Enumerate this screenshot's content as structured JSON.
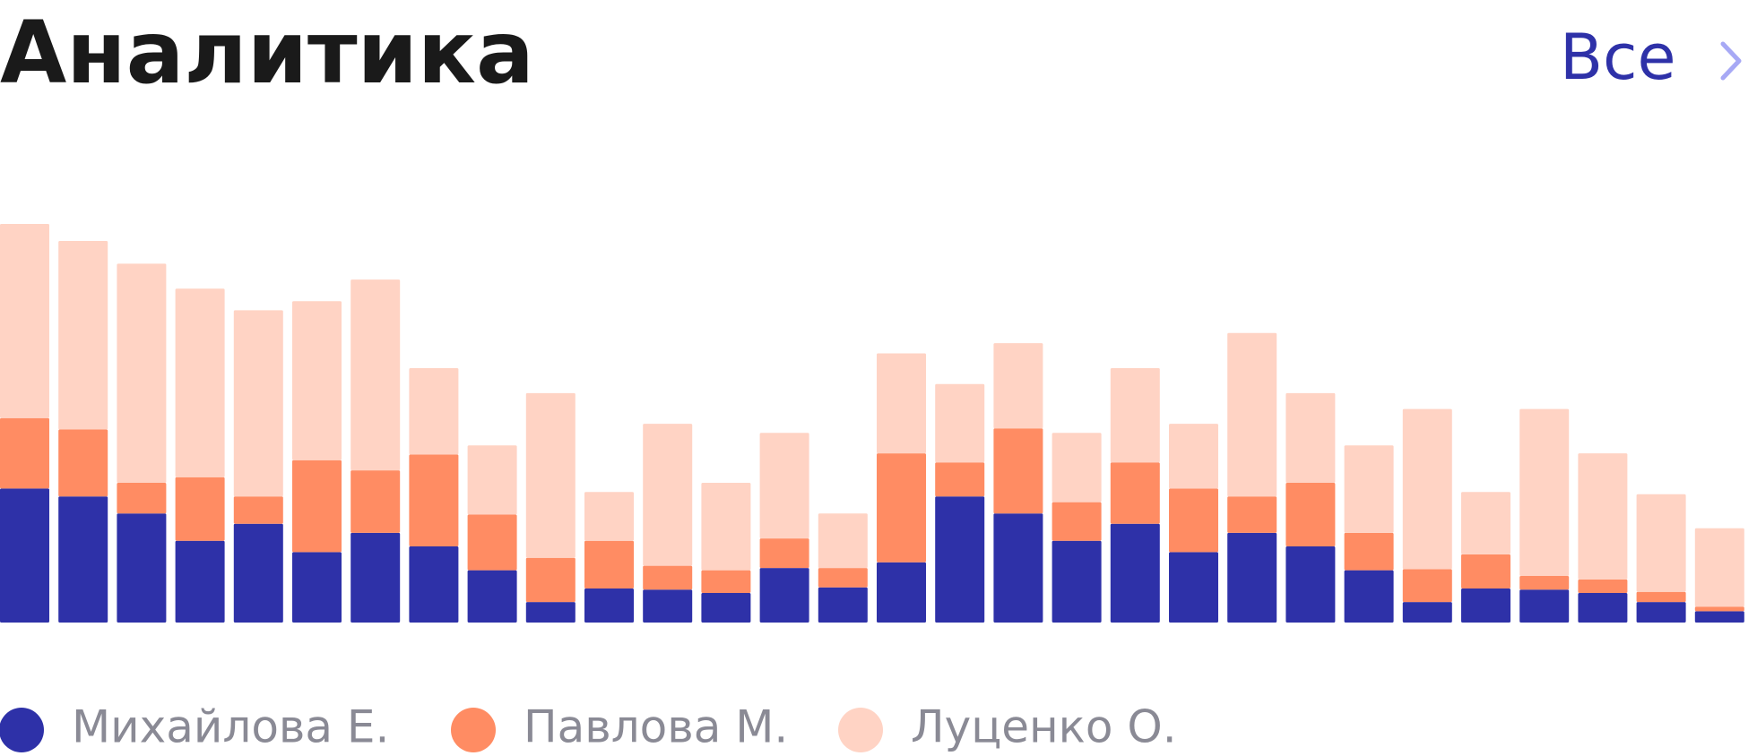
{
  "header": {
    "link": "Все"
  },
  "chart_data": {
    "type": "bar",
    "stacked": true,
    "title": "Аналитика",
    "categories": [
      null,
      null,
      null,
      null,
      null,
      null,
      null,
      null,
      null,
      null,
      null,
      null,
      null,
      null,
      null,
      null,
      null,
      null,
      null,
      null,
      null,
      null,
      null,
      null,
      null,
      null,
      null,
      null,
      null,
      null
    ],
    "series": [
      {
        "name": "Михайлова Е.",
        "color": "#2e31a8",
        "values": [
          118,
          111,
          96,
          72,
          87,
          62,
          79,
          67,
          46,
          18,
          30,
          29,
          26,
          48,
          31,
          53,
          111,
          96,
          72,
          87,
          62,
          79,
          67,
          46,
          18,
          30,
          29,
          26,
          18,
          10
        ]
      },
      {
        "name": "Павлова М.",
        "color": "#ff8c63",
        "values": [
          62,
          59,
          27,
          56,
          24,
          81,
          55,
          81,
          49,
          39,
          42,
          21,
          20,
          26,
          17,
          96,
          30,
          75,
          34,
          54,
          56,
          32,
          56,
          33,
          29,
          30,
          12,
          12,
          9,
          4
        ]
      },
      {
        "name": "Луценко О.",
        "color": "#ffd3c4",
        "values": [
          171,
          166,
          193,
          166,
          164,
          140,
          168,
          76,
          61,
          145,
          43,
          125,
          77,
          93,
          48,
          88,
          69,
          75,
          61,
          83,
          57,
          144,
          79,
          77,
          141,
          55,
          147,
          111,
          86,
          69
        ]
      }
    ],
    "legend": "bottom"
  }
}
